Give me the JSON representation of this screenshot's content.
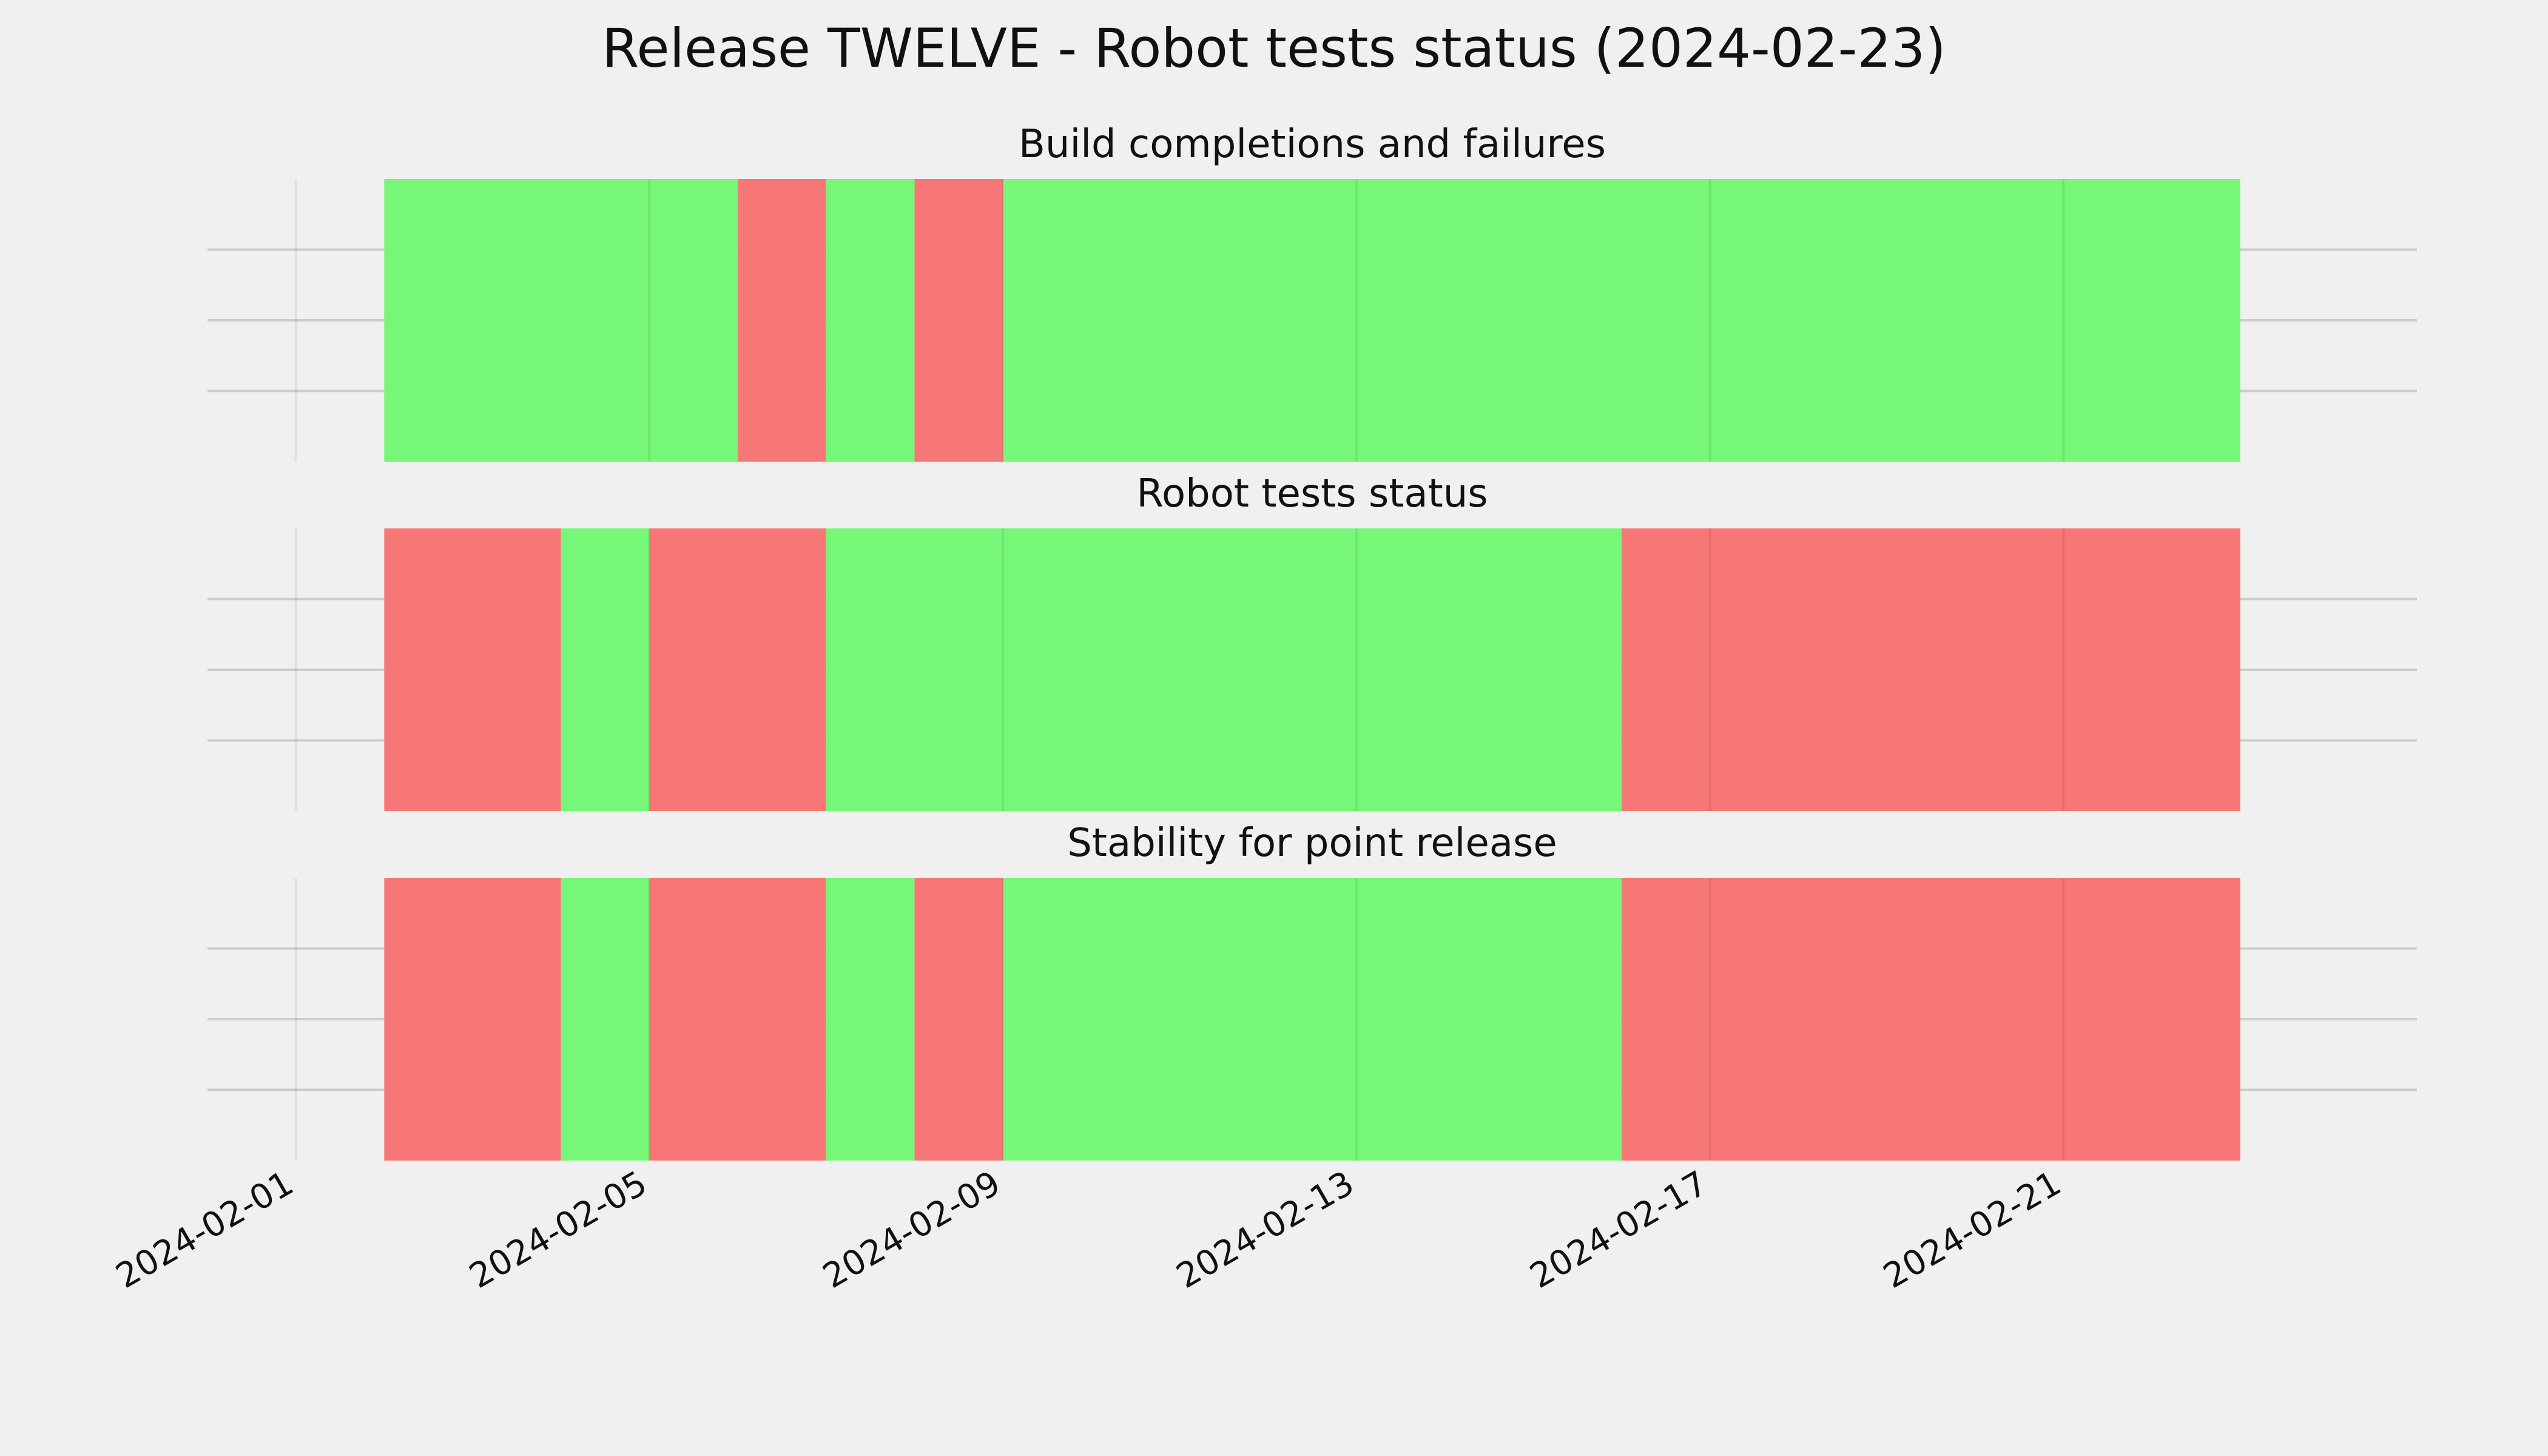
{
  "chart_data": {
    "type": "timeline",
    "title": "Release TWELVE - Robot tests status (2024-02-23)",
    "x_axis": {
      "type": "date",
      "range": [
        "2024-01-31",
        "2024-02-25"
      ],
      "ticks": [
        "2024-02-01",
        "2024-02-05",
        "2024-02-09",
        "2024-02-13",
        "2024-02-17",
        "2024-02-21"
      ],
      "grid": true
    },
    "colors": {
      "pass": "#77f777",
      "fail": "#f77777",
      "background": "#f0f0f0",
      "grid": "#cccccc"
    },
    "panels": [
      {
        "title": "Build completions and failures",
        "segments": [
          {
            "start": "2024-02-02",
            "end": "2024-02-06",
            "status": "pass"
          },
          {
            "start": "2024-02-06",
            "end": "2024-02-07",
            "status": "fail"
          },
          {
            "start": "2024-02-07",
            "end": "2024-02-08",
            "status": "pass"
          },
          {
            "start": "2024-02-08",
            "end": "2024-02-09",
            "status": "fail"
          },
          {
            "start": "2024-02-09",
            "end": "2024-02-23",
            "status": "pass"
          }
        ]
      },
      {
        "title": "Robot tests status",
        "segments": [
          {
            "start": "2024-02-02",
            "end": "2024-02-04",
            "status": "fail"
          },
          {
            "start": "2024-02-04",
            "end": "2024-02-05",
            "status": "pass"
          },
          {
            "start": "2024-02-05",
            "end": "2024-02-07",
            "status": "fail"
          },
          {
            "start": "2024-02-07",
            "end": "2024-02-16",
            "status": "pass"
          },
          {
            "start": "2024-02-16",
            "end": "2024-02-23",
            "status": "fail"
          }
        ]
      },
      {
        "title": "Stability for point release",
        "segments": [
          {
            "start": "2024-02-02",
            "end": "2024-02-04",
            "status": "fail"
          },
          {
            "start": "2024-02-04",
            "end": "2024-02-05",
            "status": "pass"
          },
          {
            "start": "2024-02-05",
            "end": "2024-02-07",
            "status": "fail"
          },
          {
            "start": "2024-02-07",
            "end": "2024-02-08",
            "status": "pass"
          },
          {
            "start": "2024-02-08",
            "end": "2024-02-09",
            "status": "fail"
          },
          {
            "start": "2024-02-09",
            "end": "2024-02-16",
            "status": "pass"
          },
          {
            "start": "2024-02-16",
            "end": "2024-02-23",
            "status": "fail"
          }
        ]
      }
    ]
  }
}
